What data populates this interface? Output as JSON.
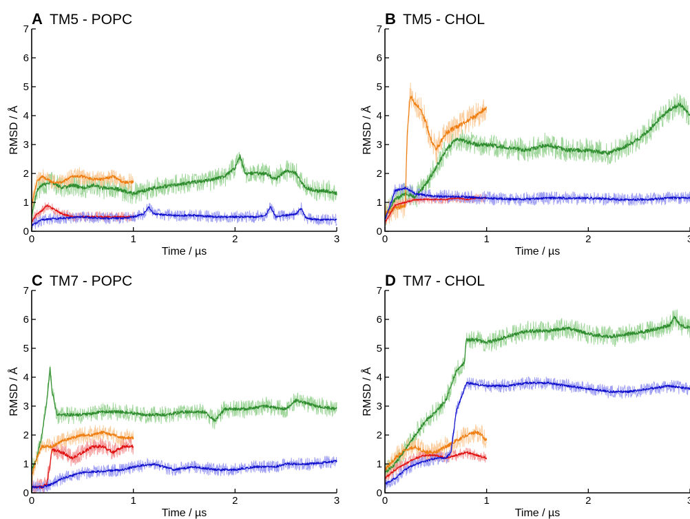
{
  "chart_data": [
    {
      "type": "line",
      "letter": "A",
      "title": "TM5 - POPC",
      "xlabel": "Time / µs",
      "ylabel": "RMSD / Å",
      "xlim": [
        0,
        3
      ],
      "ylim": [
        0,
        7
      ],
      "xticks": [
        "0",
        "1",
        "2",
        "3"
      ],
      "yticks": [
        "0",
        "1",
        "2",
        "3",
        "4",
        "5",
        "6",
        "7"
      ],
      "grid": false,
      "series": [
        {
          "color": "#2e8b2e",
          "band_color": "#8fcf8a",
          "noise": 0.35,
          "x": [
            0,
            0.05,
            0.1,
            0.2,
            0.3,
            0.4,
            0.5,
            0.6,
            0.7,
            0.8,
            0.9,
            1.0,
            1.1,
            1.2,
            1.4,
            1.6,
            1.8,
            1.9,
            2.0,
            2.05,
            2.1,
            2.2,
            2.3,
            2.4,
            2.5,
            2.6,
            2.65,
            2.7,
            2.8,
            2.9,
            3.0
          ],
          "y": [
            0.5,
            1.4,
            1.6,
            1.7,
            1.5,
            1.6,
            1.5,
            1.6,
            1.5,
            1.5,
            1.4,
            1.3,
            1.4,
            1.5,
            1.6,
            1.7,
            1.8,
            1.9,
            2.2,
            2.6,
            2.0,
            2.0,
            2.0,
            1.8,
            2.1,
            2.0,
            1.7,
            1.5,
            1.4,
            1.4,
            1.3
          ]
        },
        {
          "color": "#ee7d10",
          "band_color": "#fbc58e",
          "noise": 0.28,
          "x": [
            0,
            0.05,
            0.1,
            0.2,
            0.3,
            0.4,
            0.5,
            0.6,
            0.7,
            0.8,
            0.9,
            1.0
          ],
          "y": [
            0.9,
            1.7,
            1.9,
            1.7,
            1.7,
            1.9,
            1.9,
            1.8,
            1.8,
            1.9,
            1.7,
            1.7
          ]
        },
        {
          "color": "#e01010",
          "band_color": "#f58c8c",
          "noise": 0.18,
          "x": [
            0,
            0.05,
            0.1,
            0.15,
            0.2,
            0.3,
            0.4,
            0.5,
            0.6,
            0.7,
            0.8,
            0.9,
            1.0
          ],
          "y": [
            0.3,
            0.6,
            0.7,
            0.9,
            0.8,
            0.6,
            0.5,
            0.5,
            0.5,
            0.5,
            0.5,
            0.5,
            0.5
          ]
        },
        {
          "color": "#1010cc",
          "band_color": "#8f8ff2",
          "noise": 0.2,
          "x": [
            0,
            0.1,
            0.3,
            0.5,
            0.7,
            0.9,
            1.0,
            1.1,
            1.15,
            1.2,
            1.4,
            1.6,
            1.8,
            2.0,
            2.2,
            2.3,
            2.35,
            2.4,
            2.6,
            2.65,
            2.7,
            2.8,
            3.0
          ],
          "y": [
            0.2,
            0.4,
            0.45,
            0.5,
            0.45,
            0.45,
            0.5,
            0.6,
            0.85,
            0.6,
            0.55,
            0.55,
            0.5,
            0.5,
            0.5,
            0.55,
            0.85,
            0.5,
            0.6,
            0.8,
            0.45,
            0.4,
            0.4
          ]
        }
      ]
    },
    {
      "type": "line",
      "letter": "B",
      "title": "TM5 - CHOL",
      "xlabel": "Time / µs",
      "ylabel": "RMSD / Å",
      "xlim": [
        0,
        3
      ],
      "ylim": [
        0,
        7
      ],
      "xticks": [
        "0",
        "1",
        "2",
        "3"
      ],
      "yticks": [
        "0",
        "1",
        "2",
        "3",
        "4",
        "5",
        "6",
        "7"
      ],
      "grid": false,
      "series": [
        {
          "color": "#2e8b2e",
          "band_color": "#8fcf8a",
          "noise": 0.4,
          "x": [
            0,
            0.1,
            0.2,
            0.3,
            0.4,
            0.5,
            0.6,
            0.7,
            0.8,
            0.9,
            1.0,
            1.2,
            1.4,
            1.6,
            1.8,
            2.0,
            2.2,
            2.4,
            2.5,
            2.6,
            2.7,
            2.8,
            2.9,
            2.95,
            3.0
          ],
          "y": [
            0.5,
            1.1,
            1.3,
            1.2,
            1.6,
            2.2,
            2.8,
            3.2,
            3.1,
            3.0,
            3.0,
            2.9,
            2.8,
            3.0,
            2.8,
            2.8,
            2.7,
            3.0,
            3.2,
            3.5,
            3.9,
            4.2,
            4.4,
            4.2,
            4.0
          ]
        },
        {
          "color": "#ee7d10",
          "band_color": "#fbc58e",
          "noise": 0.45,
          "x": [
            0,
            0.1,
            0.2,
            0.22,
            0.25,
            0.3,
            0.35,
            0.4,
            0.45,
            0.5,
            0.6,
            0.7,
            0.8,
            0.9,
            1.0
          ],
          "y": [
            0.6,
            0.8,
            0.9,
            3.5,
            4.7,
            4.4,
            4.2,
            3.8,
            3.2,
            2.8,
            3.4,
            3.6,
            3.8,
            4.0,
            4.3
          ]
        },
        {
          "color": "#e01010",
          "band_color": "#f58c8c",
          "noise": 0.15,
          "x": [
            0,
            0.1,
            0.2,
            0.3,
            0.4,
            0.5,
            0.6,
            0.7,
            0.8,
            0.9,
            1.0
          ],
          "y": [
            0.3,
            0.9,
            1.0,
            1.1,
            1.1,
            1.1,
            1.1,
            1.15,
            1.1,
            1.15,
            1.15
          ]
        },
        {
          "color": "#1010cc",
          "band_color": "#8f8ff2",
          "noise": 0.22,
          "x": [
            0,
            0.1,
            0.2,
            0.3,
            0.5,
            0.7,
            1.0,
            1.3,
            1.6,
            2.0,
            2.3,
            2.6,
            2.8,
            3.0
          ],
          "y": [
            0.4,
            1.4,
            1.5,
            1.3,
            1.2,
            1.2,
            1.15,
            1.1,
            1.15,
            1.15,
            1.1,
            1.1,
            1.15,
            1.15
          ]
        }
      ]
    },
    {
      "type": "line",
      "letter": "C",
      "title": "TM7 - POPC",
      "xlabel": "Time / µs",
      "ylabel": "RMSD / Å",
      "xlim": [
        0,
        3
      ],
      "ylim": [
        0,
        7
      ],
      "xticks": [
        "0",
        "1",
        "2",
        "3"
      ],
      "yticks": [
        "0",
        "1",
        "2",
        "3",
        "4",
        "5",
        "6",
        "7"
      ],
      "grid": false,
      "series": [
        {
          "color": "#2e8b2e",
          "band_color": "#8fcf8a",
          "noise": 0.3,
          "x": [
            0,
            0.05,
            0.1,
            0.15,
            0.18,
            0.2,
            0.25,
            0.3,
            0.5,
            0.7,
            0.9,
            1.1,
            1.3,
            1.5,
            1.7,
            1.8,
            1.9,
            2.1,
            2.3,
            2.5,
            2.6,
            2.8,
            3.0
          ],
          "y": [
            0.8,
            1.2,
            2.0,
            3.2,
            4.3,
            3.5,
            2.7,
            2.7,
            2.7,
            2.8,
            2.8,
            2.7,
            2.7,
            2.8,
            2.8,
            2.5,
            2.9,
            2.9,
            3.0,
            2.9,
            3.2,
            3.0,
            2.9
          ]
        },
        {
          "color": "#ee7d10",
          "band_color": "#fbc58e",
          "noise": 0.3,
          "x": [
            0,
            0.05,
            0.1,
            0.2,
            0.3,
            0.4,
            0.5,
            0.6,
            0.7,
            0.8,
            0.9,
            1.0
          ],
          "y": [
            0.6,
            1.2,
            1.6,
            1.6,
            1.8,
            1.9,
            2.0,
            2.0,
            2.1,
            2.0,
            1.9,
            1.9
          ]
        },
        {
          "color": "#e01010",
          "band_color": "#f58c8c",
          "noise": 0.3,
          "x": [
            0,
            0.1,
            0.15,
            0.2,
            0.3,
            0.4,
            0.45,
            0.5,
            0.6,
            0.7,
            0.8,
            0.9,
            1.0
          ],
          "y": [
            0.2,
            0.2,
            0.3,
            1.5,
            1.4,
            1.2,
            1.3,
            1.4,
            1.6,
            1.6,
            1.4,
            1.6,
            1.6
          ]
        },
        {
          "color": "#1010cc",
          "band_color": "#8f8ff2",
          "noise": 0.22,
          "x": [
            0,
            0.1,
            0.2,
            0.3,
            0.5,
            0.7,
            0.9,
            1.0,
            1.2,
            1.4,
            1.6,
            1.8,
            2.0,
            2.2,
            2.4,
            2.5,
            2.7,
            2.9,
            3.0
          ],
          "y": [
            0.2,
            0.2,
            0.3,
            0.5,
            0.7,
            0.75,
            0.8,
            0.9,
            1.0,
            0.8,
            0.9,
            0.8,
            0.8,
            0.9,
            0.9,
            1.0,
            1.0,
            1.05,
            1.1
          ]
        }
      ]
    },
    {
      "type": "line",
      "letter": "D",
      "title": "TM7 - CHOL",
      "xlabel": "Time / µs",
      "ylabel": "RMSD / Å",
      "xlim": [
        0,
        3
      ],
      "ylim": [
        0,
        7
      ],
      "xticks": [
        "0",
        "1",
        "2",
        "3"
      ],
      "yticks": [
        "0",
        "1",
        "2",
        "3",
        "4",
        "5",
        "6",
        "7"
      ],
      "grid": false,
      "series": [
        {
          "color": "#2e8b2e",
          "band_color": "#8fcf8a",
          "noise": 0.35,
          "x": [
            0,
            0.1,
            0.2,
            0.3,
            0.4,
            0.5,
            0.6,
            0.7,
            0.78,
            0.8,
            0.9,
            1.0,
            1.2,
            1.4,
            1.6,
            1.8,
            2.0,
            2.2,
            2.4,
            2.6,
            2.8,
            2.85,
            2.9,
            3.0
          ],
          "y": [
            0.7,
            1.0,
            1.5,
            2.0,
            2.5,
            2.8,
            3.2,
            4.2,
            4.5,
            5.3,
            5.3,
            5.2,
            5.4,
            5.6,
            5.6,
            5.7,
            5.5,
            5.4,
            5.5,
            5.6,
            5.8,
            6.1,
            5.8,
            5.7
          ]
        },
        {
          "color": "#ee7d10",
          "band_color": "#fbc58e",
          "noise": 0.35,
          "x": [
            0,
            0.1,
            0.2,
            0.3,
            0.4,
            0.5,
            0.6,
            0.7,
            0.8,
            0.9,
            0.95,
            1.0
          ],
          "y": [
            0.8,
            1.2,
            1.5,
            1.6,
            1.4,
            1.4,
            1.6,
            1.8,
            2.0,
            2.1,
            2.0,
            1.8
          ]
        },
        {
          "color": "#e01010",
          "band_color": "#f58c8c",
          "noise": 0.2,
          "x": [
            0,
            0.1,
            0.2,
            0.3,
            0.4,
            0.5,
            0.6,
            0.7,
            0.8,
            0.9,
            1.0
          ],
          "y": [
            0.5,
            0.8,
            1.0,
            1.2,
            1.3,
            1.3,
            1.2,
            1.3,
            1.4,
            1.3,
            1.2
          ]
        },
        {
          "color": "#1010cc",
          "band_color": "#8f8ff2",
          "noise": 0.22,
          "x": [
            0,
            0.1,
            0.2,
            0.3,
            0.5,
            0.6,
            0.65,
            0.7,
            0.75,
            0.8,
            1.0,
            1.2,
            1.4,
            1.6,
            1.8,
            2.0,
            2.2,
            2.4,
            2.6,
            2.8,
            3.0
          ],
          "y": [
            0.3,
            0.5,
            0.8,
            1.0,
            1.2,
            1.2,
            1.4,
            2.8,
            3.3,
            3.8,
            3.7,
            3.7,
            3.8,
            3.8,
            3.7,
            3.6,
            3.5,
            3.5,
            3.6,
            3.7,
            3.6
          ]
        }
      ]
    }
  ]
}
